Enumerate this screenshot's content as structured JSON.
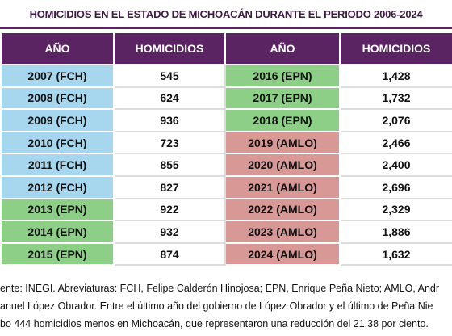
{
  "title": "HOMICIDIOS EN EL ESTADO DE MICHOACÁN DURANTE EL PERIODO 2006-2024",
  "table": {
    "header": [
      "AÑO",
      "HOMICIDIOS",
      "AÑO",
      "HOMICIDIOS"
    ],
    "rows": [
      [
        "2007 (FCH)",
        "545",
        "2016 (EPN)",
        "1,428"
      ],
      [
        "2008 (FCH)",
        "624",
        "2017 (EPN)",
        "1,732"
      ],
      [
        "2009 (FCH)",
        "936",
        "2018 (EPN)",
        "2,076"
      ],
      [
        "2010 (FCH)",
        "723",
        "2019 (AMLO)",
        "2,466"
      ],
      [
        "2011 (FCH)",
        "855",
        "2020 (AMLO)",
        "2,400"
      ],
      [
        "2012 (FCH)",
        "827",
        "2021 (AMLO)",
        "2,696"
      ],
      [
        "2013 (EPN)",
        "922",
        "2022 (AMLO)",
        "2,329"
      ],
      [
        "2014 (EPN)",
        "932",
        "2023 (AMLO)",
        "1,886"
      ],
      [
        "2015 (EPN)",
        "874",
        "2024 (AMLO)",
        "1,632"
      ]
    ]
  },
  "footnote": [
    "ente: INEGI. Abreviaturas: FCH, Felipe Calderón Hinojosa; EPN, Enrique Peña Nieto; AMLO, Andr",
    "anuel López Obrador. Entre el último año del gobierno de López Obrador y el último de Peña Nie",
    "bo 444 homicidios menos en Michoacán, que representaron una reducción del 21.38 por ciento."
  ]
}
